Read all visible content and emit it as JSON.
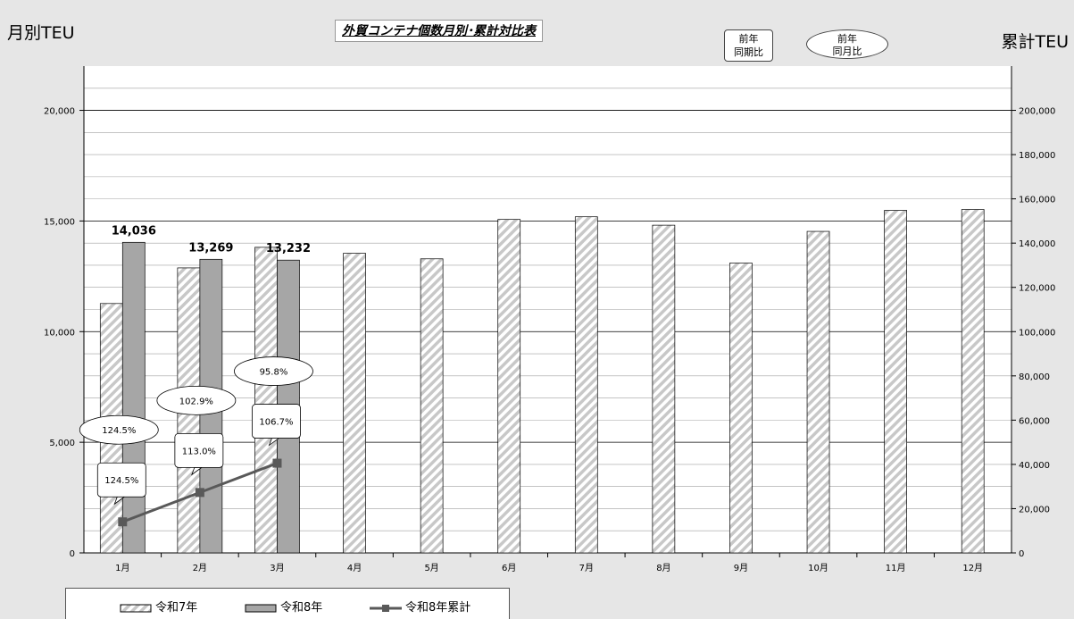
{
  "header": {
    "left_axis_title": "月別TEU",
    "right_axis_title": "累計TEU",
    "chart_title": "外貿コンテナ個数月別･累計対比表",
    "yoy_label_line1": "前年",
    "yoy_label_line2": "同期比",
    "mom_label_line1": "前年",
    "mom_label_line2": "同月比"
  },
  "colors": {
    "bar_prev": "#c8c8c8",
    "bar_curr": "#a6a6a6",
    "line_cum": "#595959",
    "plot_bg": "#ffffff",
    "page_bg": "#e6e6e6"
  },
  "chart_data": {
    "type": "bar",
    "title": "外貿コンテナ個数月別･累計対比表",
    "categories": [
      "1月",
      "2月",
      "3月",
      "4月",
      "5月",
      "6月",
      "7月",
      "8月",
      "9月",
      "10月",
      "11月",
      "12月"
    ],
    "series": [
      {
        "name": "令和7年",
        "type": "bar",
        "axis": "left",
        "values": [
          11270,
          12880,
          13810,
          13540,
          13290,
          15070,
          15190,
          14810,
          13100,
          14530,
          15480,
          15520
        ]
      },
      {
        "name": "令和8年",
        "type": "bar",
        "axis": "left",
        "values": [
          14036,
          13269,
          13232,
          null,
          null,
          null,
          null,
          null,
          null,
          null,
          null,
          null
        ],
        "data_labels": [
          "14,036",
          "13,269",
          "13,232"
        ]
      },
      {
        "name": "令和8年累計",
        "type": "line",
        "axis": "right",
        "values": [
          14036,
          27305,
          40537,
          null,
          null,
          null,
          null,
          null,
          null,
          null,
          null,
          null
        ]
      }
    ],
    "y_left": {
      "label": "月別TEU",
      "range": [
        0,
        22000
      ],
      "ticks": [
        0,
        5000,
        10000,
        15000,
        20000
      ],
      "tick_labels": [
        "0",
        "5,000",
        "10,000",
        "15,000",
        "20,000"
      ]
    },
    "y_right": {
      "label": "累計TEU",
      "range": [
        0,
        220000
      ],
      "ticks": [
        0,
        20000,
        40000,
        60000,
        80000,
        100000,
        120000,
        140000,
        160000,
        180000,
        200000
      ],
      "tick_labels": [
        "0",
        "20,000",
        "40,000",
        "60,000",
        "80,000",
        "100,000",
        "120,000",
        "140,000",
        "160,000",
        "180,000",
        "200,000"
      ]
    },
    "grid": true,
    "legend_position": "bottom-left",
    "annotations": {
      "yoy": [
        "124.5%",
        "113.0%",
        "106.7%"
      ],
      "mom": [
        "124.5%",
        "102.9%",
        "95.8%"
      ]
    }
  }
}
